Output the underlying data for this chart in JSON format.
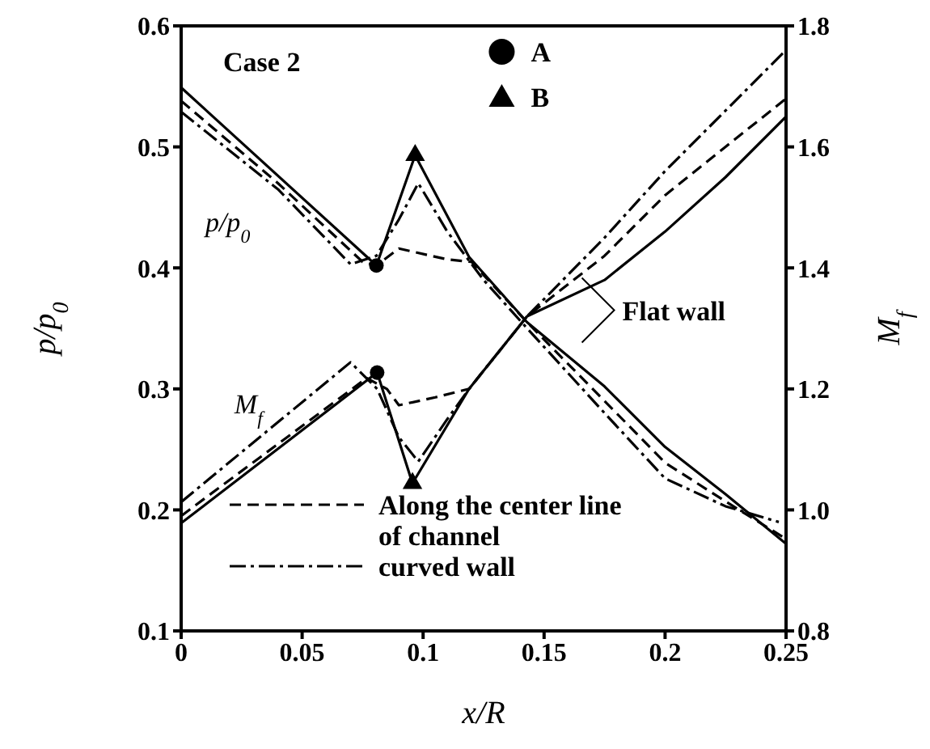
{
  "chart_data": {
    "type": "line",
    "xlabel": "x/R",
    "ylabel": "p/p$_{0}$",
    "y2label": "M$_{f}$",
    "xlim": [
      0,
      0.25
    ],
    "xticks": [
      0,
      0.05,
      0.1,
      0.15,
      0.2,
      0.25
    ],
    "ylim": [
      0.1,
      0.6
    ],
    "yticks": [
      0.1,
      0.2,
      0.3,
      0.4,
      0.5,
      0.6
    ],
    "y2lim": [
      0.8,
      1.8
    ],
    "y2ticks": [
      0.8,
      {
        "value": 1,
        "label": "1.0"
      },
      1.2,
      1.4,
      1.6,
      1.8
    ],
    "legend": "top left",
    "annotations": [
      "Case 2",
      "p/p$_{0}$",
      "M$_{f}$",
      "Flat  wall"
    ],
    "series": [
      {
        "line_style": "solid",
        "color": "#000000",
        "x": [
          0,
          0.0807,
          0.0967,
          0.119,
          0.143,
          0.175,
          0.2,
          0.225,
          0.25
        ],
        "values": [
          0.549,
          0.402,
          0.493,
          0.409,
          0.355,
          0.302,
          0.252,
          0.213,
          0.172
        ]
      },
      {
        "name": "Along the center line of channel",
        "line_style": "dashed",
        "color": "#000000",
        "x": [
          0,
          0.04,
          0.075,
          0.0807,
          0.09,
          0.11,
          0.12,
          0.143,
          0.175,
          0.2,
          0.225,
          0.25
        ],
        "values": [
          0.538,
          0.47,
          0.405,
          0.402,
          0.416,
          0.407,
          0.405,
          0.355,
          0.29,
          0.239,
          0.207,
          0.176
        ]
      },
      {
        "name": "curved wall",
        "line_style": "dashdot",
        "color": "#000000",
        "x": [
          0,
          0.04,
          0.07,
          0.0807,
          0.09,
          0.098,
          0.11,
          0.125,
          0.143,
          0.175,
          0.2,
          0.225,
          0.247
        ],
        "values": [
          0.529,
          0.465,
          0.403,
          0.41,
          0.44,
          0.47,
          0.43,
          0.39,
          0.35,
          0.28,
          0.226,
          0.203,
          0.19
        ]
      },
      {
        "axis": "y2",
        "line_style": "solid",
        "color": "#000000",
        "x": [
          0,
          0.081,
          0.0956,
          0.119,
          0.143,
          0.175,
          0.2,
          0.225,
          0.25
        ],
        "values": [
          0.978,
          1.227,
          1.044,
          1.2,
          1.32,
          1.38,
          1.46,
          1.55,
          1.65
        ]
      },
      {
        "axis": "y2",
        "line_style": "dashed",
        "color": "#000000",
        "x": [
          0,
          0.0767,
          0.085,
          0.09,
          0.105,
          0.119,
          0.143,
          0.175,
          0.2,
          0.225,
          0.25
        ],
        "values": [
          0.99,
          1.218,
          1.2,
          1.173,
          1.186,
          1.2,
          1.32,
          1.42,
          1.52,
          1.6,
          1.68
        ]
      },
      {
        "axis": "y2",
        "line_style": "dashdot",
        "color": "#000000",
        "x": [
          0,
          0.07,
          0.081,
          0.09,
          0.098,
          0.11,
          0.119,
          0.143,
          0.175,
          0.2,
          0.225,
          0.25
        ],
        "values": [
          1.013,
          1.244,
          1.2,
          1.12,
          1.08,
          1.15,
          1.2,
          1.32,
          1.45,
          1.56,
          1.66,
          1.76
        ]
      },
      {
        "type": "scatter",
        "name": "A",
        "marker": "circle",
        "color": "#000000",
        "x": [
          0.0807
        ],
        "values": [
          0.402
        ]
      },
      {
        "type": "scatter",
        "axis": "y2",
        "marker": "circle",
        "color": "#000000",
        "x": [
          0.081
        ],
        "values": [
          1.227
        ]
      },
      {
        "type": "scatter",
        "name": "B",
        "marker": "triangle",
        "color": "#000000",
        "x": [
          0.0967
        ],
        "values": [
          0.493
        ]
      },
      {
        "type": "scatter",
        "axis": "y2",
        "marker": "triangle",
        "color": "#000000",
        "x": [
          0.0956
        ],
        "values": [
          1.044
        ]
      }
    ]
  }
}
